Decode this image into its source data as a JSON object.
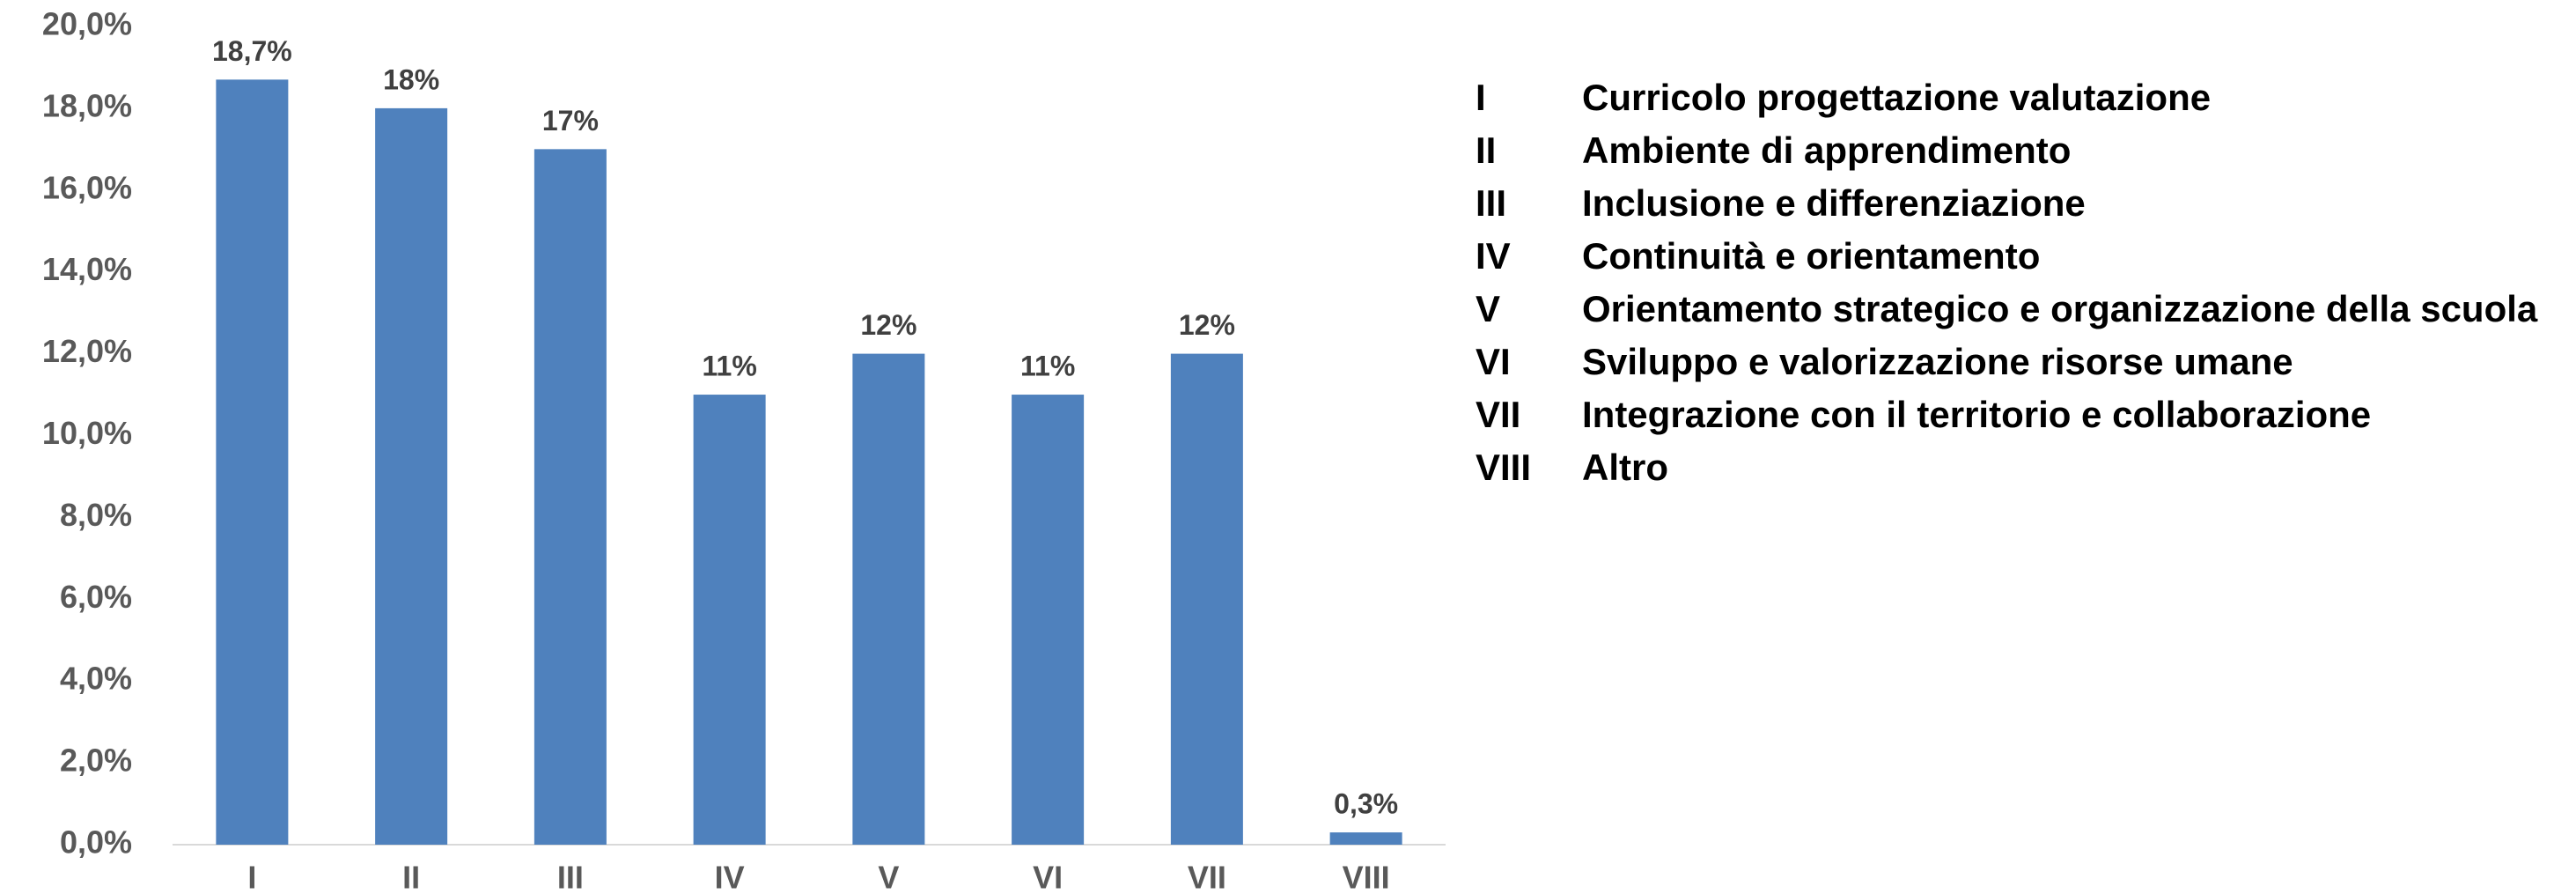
{
  "chart_data": {
    "type": "bar",
    "categories": [
      "I",
      "II",
      "III",
      "IV",
      "V",
      "VI",
      "VII",
      "VIII"
    ],
    "values": [
      18.7,
      18,
      17,
      11,
      12,
      11,
      12,
      0.3
    ],
    "value_labels": [
      "18,7%",
      "18%",
      "17%",
      "11%",
      "12%",
      "11%",
      "12%",
      "0,3%"
    ],
    "color": "#4f81bd",
    "ylim": [
      0,
      20
    ],
    "yticks": [
      {
        "value": 0,
        "label": "0,0%"
      },
      {
        "value": 2,
        "label": "2,0%"
      },
      {
        "value": 4,
        "label": "4,0%"
      },
      {
        "value": 6,
        "label": "6,0%"
      },
      {
        "value": 8,
        "label": "8,0%"
      },
      {
        "value": 10,
        "label": "10,0%"
      },
      {
        "value": 12,
        "label": "12,0%"
      },
      {
        "value": 14,
        "label": "14,0%"
      },
      {
        "value": 16,
        "label": "16,0%"
      },
      {
        "value": 18,
        "label": "18,0%"
      },
      {
        "value": 20,
        "label": "20,0%"
      }
    ],
    "grid": false,
    "key": [
      {
        "code": "I",
        "label": "Curricolo progettazione valutazione"
      },
      {
        "code": "II",
        "label": "Ambiente di apprendimento"
      },
      {
        "code": "III",
        "label": "Inclusione e differenziazione"
      },
      {
        "code": "IV",
        "label": "Continuità e orientamento"
      },
      {
        "code": "V",
        "label": "Orientamento strategico e organizzazione della scuola"
      },
      {
        "code": "VI",
        "label": "Sviluppo e valorizzazione risorse umane"
      },
      {
        "code": "VII",
        "label": "Integrazione con il territorio e collaborazione"
      },
      {
        "code": "VIII",
        "label": "Altro"
      }
    ]
  }
}
